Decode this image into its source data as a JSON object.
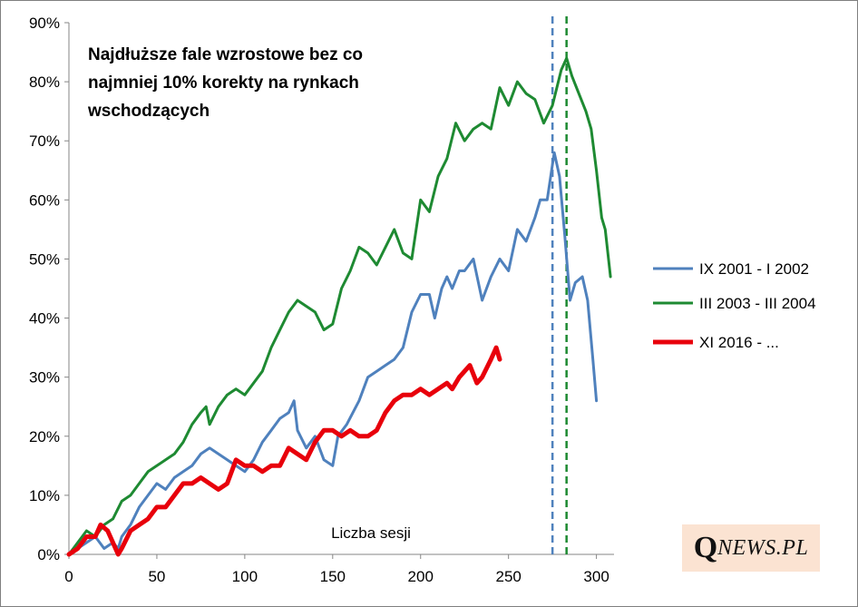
{
  "chart_data": {
    "type": "line",
    "title_lines": [
      "Najdłuższe fale wzrostowe bez co",
      "najmniej  10% korekty na rynkach",
      "wschodzących"
    ],
    "xlabel": "Liczba sesji",
    "ylabel": "",
    "xlim": [
      0,
      310
    ],
    "ylim": [
      0,
      0.9
    ],
    "x_ticks": [
      0,
      50,
      100,
      150,
      200,
      250,
      300
    ],
    "y_ticks": [
      {
        "value": 0,
        "label": "0%"
      },
      {
        "value": 0.1,
        "label": "10%"
      },
      {
        "value": 0.2,
        "label": "20%"
      },
      {
        "value": 0.3,
        "label": "30%"
      },
      {
        "value": 0.4,
        "label": "40%"
      },
      {
        "value": 0.5,
        "label": "50%"
      },
      {
        "value": 0.6,
        "label": "60%"
      },
      {
        "value": 0.7,
        "label": "70%"
      },
      {
        "value": 0.8,
        "label": "80%"
      },
      {
        "value": 0.9,
        "label": "90%"
      }
    ],
    "grid": false,
    "legend_position": "right",
    "vertical_markers": [
      {
        "x": 275,
        "color": "#4f81bd",
        "style": "dashed"
      },
      {
        "x": 283,
        "color": "#1e8a32",
        "style": "dashed"
      }
    ],
    "series": [
      {
        "name": "IX 2001 - I 2002",
        "color": "#4f81bd",
        "width": 3,
        "points": [
          [
            0,
            0.0
          ],
          [
            5,
            0.01
          ],
          [
            10,
            0.02
          ],
          [
            15,
            0.03
          ],
          [
            20,
            0.01
          ],
          [
            25,
            0.02
          ],
          [
            28,
            0.01
          ],
          [
            30,
            0.03
          ],
          [
            35,
            0.05
          ],
          [
            40,
            0.08
          ],
          [
            45,
            0.1
          ],
          [
            50,
            0.12
          ],
          [
            55,
            0.11
          ],
          [
            60,
            0.13
          ],
          [
            65,
            0.14
          ],
          [
            70,
            0.15
          ],
          [
            75,
            0.17
          ],
          [
            80,
            0.18
          ],
          [
            85,
            0.17
          ],
          [
            90,
            0.16
          ],
          [
            95,
            0.15
          ],
          [
            100,
            0.14
          ],
          [
            105,
            0.16
          ],
          [
            110,
            0.19
          ],
          [
            115,
            0.21
          ],
          [
            120,
            0.23
          ],
          [
            125,
            0.24
          ],
          [
            128,
            0.26
          ],
          [
            130,
            0.21
          ],
          [
            135,
            0.18
          ],
          [
            140,
            0.2
          ],
          [
            145,
            0.16
          ],
          [
            150,
            0.15
          ],
          [
            153,
            0.2
          ],
          [
            158,
            0.22
          ],
          [
            165,
            0.26
          ],
          [
            170,
            0.3
          ],
          [
            175,
            0.31
          ],
          [
            180,
            0.32
          ],
          [
            185,
            0.33
          ],
          [
            190,
            0.35
          ],
          [
            195,
            0.41
          ],
          [
            200,
            0.44
          ],
          [
            205,
            0.44
          ],
          [
            208,
            0.4
          ],
          [
            212,
            0.45
          ],
          [
            215,
            0.47
          ],
          [
            218,
            0.45
          ],
          [
            222,
            0.48
          ],
          [
            225,
            0.48
          ],
          [
            230,
            0.5
          ],
          [
            235,
            0.43
          ],
          [
            240,
            0.47
          ],
          [
            245,
            0.5
          ],
          [
            250,
            0.48
          ],
          [
            255,
            0.55
          ],
          [
            260,
            0.53
          ],
          [
            265,
            0.57
          ],
          [
            268,
            0.6
          ],
          [
            272,
            0.6
          ],
          [
            276,
            0.68
          ],
          [
            279,
            0.64
          ],
          [
            282,
            0.54
          ],
          [
            285,
            0.43
          ],
          [
            288,
            0.46
          ],
          [
            292,
            0.47
          ],
          [
            295,
            0.43
          ],
          [
            298,
            0.33
          ],
          [
            300,
            0.26
          ]
        ]
      },
      {
        "name": "III 2003 - III 2004",
        "color": "#1e8a32",
        "width": 3,
        "points": [
          [
            0,
            0.0
          ],
          [
            5,
            0.02
          ],
          [
            10,
            0.04
          ],
          [
            15,
            0.03
          ],
          [
            20,
            0.05
          ],
          [
            25,
            0.06
          ],
          [
            30,
            0.09
          ],
          [
            35,
            0.1
          ],
          [
            40,
            0.12
          ],
          [
            45,
            0.14
          ],
          [
            50,
            0.15
          ],
          [
            55,
            0.16
          ],
          [
            60,
            0.17
          ],
          [
            65,
            0.19
          ],
          [
            70,
            0.22
          ],
          [
            75,
            0.24
          ],
          [
            78,
            0.25
          ],
          [
            80,
            0.22
          ],
          [
            85,
            0.25
          ],
          [
            90,
            0.27
          ],
          [
            95,
            0.28
          ],
          [
            100,
            0.27
          ],
          [
            105,
            0.29
          ],
          [
            110,
            0.31
          ],
          [
            115,
            0.35
          ],
          [
            120,
            0.38
          ],
          [
            125,
            0.41
          ],
          [
            130,
            0.43
          ],
          [
            135,
            0.42
          ],
          [
            140,
            0.41
          ],
          [
            145,
            0.38
          ],
          [
            150,
            0.39
          ],
          [
            155,
            0.45
          ],
          [
            160,
            0.48
          ],
          [
            165,
            0.52
          ],
          [
            170,
            0.51
          ],
          [
            175,
            0.49
          ],
          [
            180,
            0.52
          ],
          [
            185,
            0.55
          ],
          [
            190,
            0.51
          ],
          [
            195,
            0.5
          ],
          [
            200,
            0.6
          ],
          [
            205,
            0.58
          ],
          [
            210,
            0.64
          ],
          [
            215,
            0.67
          ],
          [
            220,
            0.73
          ],
          [
            225,
            0.7
          ],
          [
            230,
            0.72
          ],
          [
            235,
            0.73
          ],
          [
            240,
            0.72
          ],
          [
            245,
            0.79
          ],
          [
            250,
            0.76
          ],
          [
            255,
            0.8
          ],
          [
            260,
            0.78
          ],
          [
            265,
            0.77
          ],
          [
            270,
            0.73
          ],
          [
            275,
            0.76
          ],
          [
            280,
            0.82
          ],
          [
            283,
            0.84
          ],
          [
            286,
            0.81
          ],
          [
            290,
            0.78
          ],
          [
            294,
            0.75
          ],
          [
            297,
            0.72
          ],
          [
            300,
            0.65
          ],
          [
            303,
            0.57
          ],
          [
            305,
            0.55
          ],
          [
            308,
            0.47
          ]
        ]
      },
      {
        "name": "XI 2016 - ...",
        "color": "#e8000b",
        "width": 5,
        "points": [
          [
            0,
            0.0
          ],
          [
            5,
            0.01
          ],
          [
            10,
            0.03
          ],
          [
            15,
            0.03
          ],
          [
            18,
            0.05
          ],
          [
            22,
            0.04
          ],
          [
            25,
            0.02
          ],
          [
            28,
            0.0
          ],
          [
            30,
            0.01
          ],
          [
            35,
            0.04
          ],
          [
            40,
            0.05
          ],
          [
            45,
            0.06
          ],
          [
            50,
            0.08
          ],
          [
            55,
            0.08
          ],
          [
            60,
            0.1
          ],
          [
            65,
            0.12
          ],
          [
            70,
            0.12
          ],
          [
            75,
            0.13
          ],
          [
            80,
            0.12
          ],
          [
            85,
            0.11
          ],
          [
            90,
            0.12
          ],
          [
            95,
            0.16
          ],
          [
            100,
            0.15
          ],
          [
            105,
            0.15
          ],
          [
            110,
            0.14
          ],
          [
            115,
            0.15
          ],
          [
            120,
            0.15
          ],
          [
            125,
            0.18
          ],
          [
            130,
            0.17
          ],
          [
            135,
            0.16
          ],
          [
            140,
            0.19
          ],
          [
            145,
            0.21
          ],
          [
            150,
            0.21
          ],
          [
            155,
            0.2
          ],
          [
            160,
            0.21
          ],
          [
            165,
            0.2
          ],
          [
            170,
            0.2
          ],
          [
            175,
            0.21
          ],
          [
            180,
            0.24
          ],
          [
            185,
            0.26
          ],
          [
            190,
            0.27
          ],
          [
            195,
            0.27
          ],
          [
            200,
            0.28
          ],
          [
            205,
            0.27
          ],
          [
            210,
            0.28
          ],
          [
            215,
            0.29
          ],
          [
            218,
            0.28
          ],
          [
            222,
            0.3
          ],
          [
            225,
            0.31
          ],
          [
            228,
            0.32
          ],
          [
            232,
            0.29
          ],
          [
            235,
            0.3
          ],
          [
            240,
            0.33
          ],
          [
            243,
            0.35
          ],
          [
            245,
            0.33
          ]
        ]
      }
    ]
  },
  "logo": {
    "q": "Q",
    "rest": "NEWS.PL"
  },
  "colors": {
    "blue": "#4f81bd",
    "green": "#1e8a32",
    "red": "#e8000b"
  }
}
